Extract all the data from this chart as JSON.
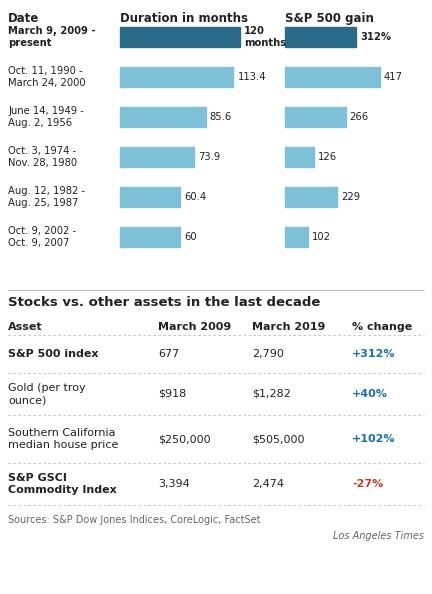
{
  "bar_rows": [
    {
      "date": "March 9, 2009 -\npresent",
      "duration": 120,
      "dur_label": "120\nmonths",
      "gain": 312,
      "gain_label": "312%",
      "bold": true
    },
    {
      "date": "Oct. 11, 1990 -\nMarch 24, 2000",
      "duration": 113.4,
      "dur_label": "113.4",
      "gain": 417,
      "gain_label": "417",
      "bold": false
    },
    {
      "date": "June 14, 1949 -\nAug. 2, 1956",
      "duration": 85.6,
      "dur_label": "85.6",
      "gain": 266,
      "gain_label": "266",
      "bold": false
    },
    {
      "date": "Oct. 3, 1974 -\nNov. 28, 1980",
      "duration": 73.9,
      "dur_label": "73.9",
      "gain": 126,
      "gain_label": "126",
      "bold": false
    },
    {
      "date": "Aug. 12, 1982 -\nAug. 25, 1987",
      "duration": 60.4,
      "dur_label": "60.4",
      "gain": 229,
      "gain_label": "229",
      "bold": false
    },
    {
      "date": "Oct. 9, 2002 -\nOct. 9, 2007",
      "duration": 60,
      "dur_label": "60",
      "gain": 102,
      "gain_label": "102",
      "bold": false
    }
  ],
  "duration_max": 120,
  "gain_max": 417,
  "dark_color": "#2b6b8a",
  "light_color": "#7dc0d8",
  "col_header_1": "Date",
  "col_header_2": "Duration in months",
  "col_header_3": "S&P 500 gain",
  "table_title": "Stocks vs. other assets in the last decade",
  "table_headers": [
    "Asset",
    "March 2009",
    "March 2019",
    "% change"
  ],
  "table_rows": [
    {
      "asset": "S&P 500 index",
      "val2009": "677",
      "val2019": "2,790",
      "change": "+312%",
      "bold": true,
      "change_color": "#1a6fa8"
    },
    {
      "asset": "Gold (per troy\nounce)",
      "val2009": "$918",
      "val2019": "$1,282",
      "change": "+40%",
      "bold": false,
      "change_color": "#1a6fa8"
    },
    {
      "asset": "Southern California\nmedian house price",
      "val2009": "$250,000",
      "val2019": "$505,000",
      "change": "+102%",
      "bold": false,
      "change_color": "#1a6fa8"
    },
    {
      "asset": "S&P GSCI\nCommodity Index",
      "val2009": "3,394",
      "val2019": "2,474",
      "change": "-27%",
      "bold": true,
      "change_color": "#c0392b"
    }
  ],
  "source_text": "Sources: S&P Dow Jones Indices, CoreLogic, FactSet",
  "credit_text": "Los Angeles Times",
  "bg_color": "#ffffff",
  "text_color": "#222222",
  "line_color": "#bbbbbb"
}
